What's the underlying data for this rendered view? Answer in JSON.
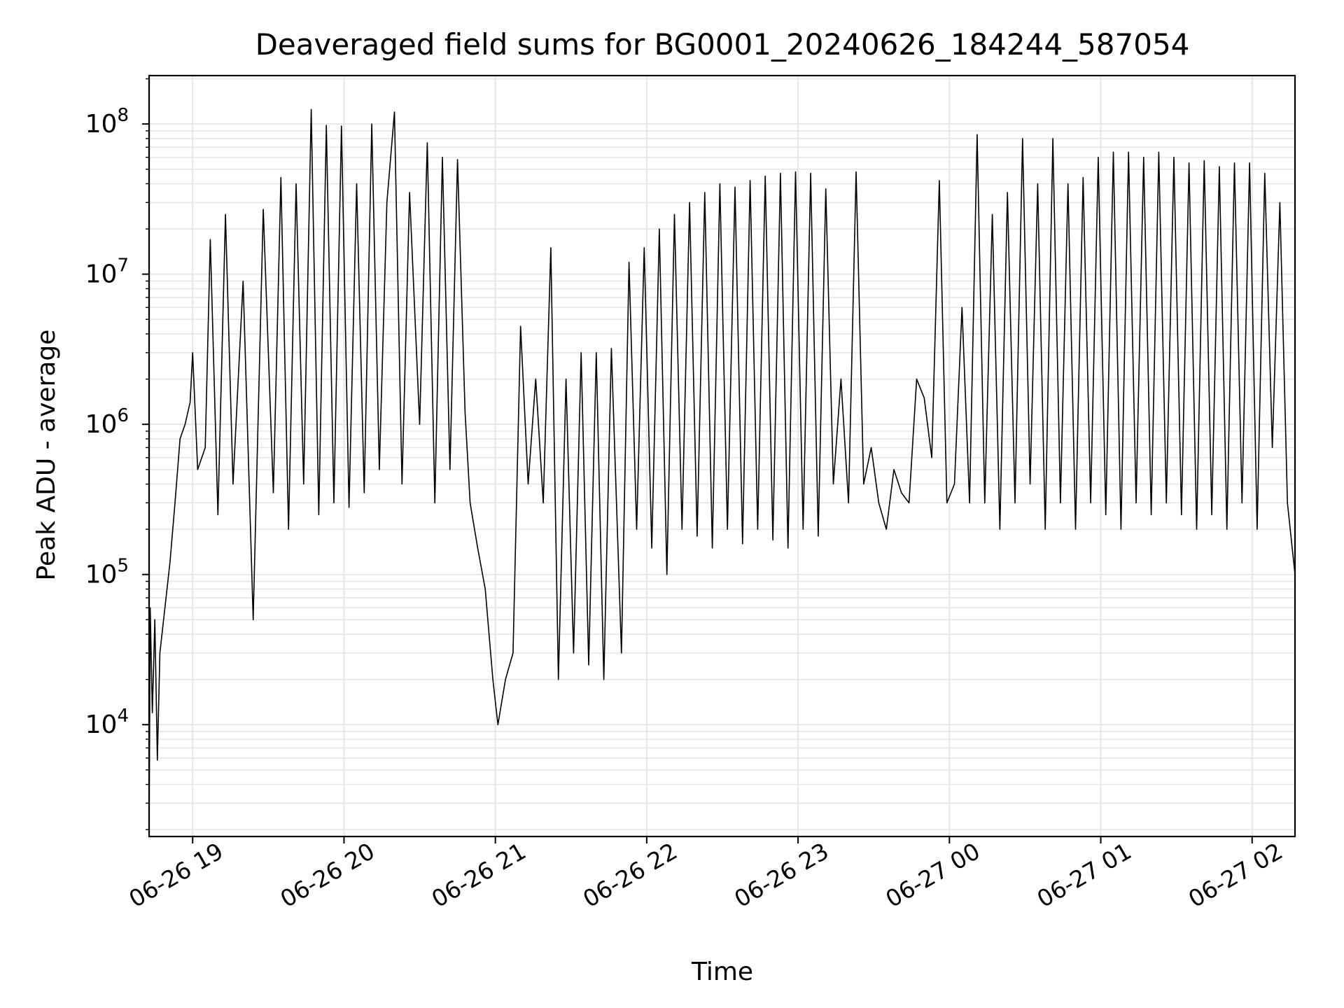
{
  "chart_data": {
    "type": "line",
    "title": "Deaveraged field sums for BG0001_20240626_184244_587054",
    "xlabel": "Time",
    "ylabel": "Peak ADU - average",
    "yscale": "log",
    "ylim": [
      1800,
      210000000
    ],
    "xlim": [
      "06-26 18:42:44",
      "06-27 02:17:00"
    ],
    "grid": true,
    "grid_minor": true,
    "line_color": "#000000",
    "grid_color": "#e6e6e6",
    "xticks": [
      {
        "label": "06-26 19",
        "time": "06-26 19:00"
      },
      {
        "label": "06-26 20",
        "time": "06-26 20:00"
      },
      {
        "label": "06-26 21",
        "time": "06-26 21:00"
      },
      {
        "label": "06-26 22",
        "time": "06-26 22:00"
      },
      {
        "label": "06-26 23",
        "time": "06-26 23:00"
      },
      {
        "label": "06-27 00",
        "time": "06-27 00:00"
      },
      {
        "label": "06-27 01",
        "time": "06-27 01:00"
      },
      {
        "label": "06-27 02",
        "time": "06-27 02:00"
      }
    ],
    "yticks": [
      {
        "base": "10",
        "exp": "4",
        "value": 10000
      },
      {
        "base": "10",
        "exp": "5",
        "value": 100000
      },
      {
        "base": "10",
        "exp": "6",
        "value": 1000000
      },
      {
        "base": "10",
        "exp": "7",
        "value": 10000000
      },
      {
        "base": "10",
        "exp": "8",
        "value": 100000000
      }
    ],
    "series": [
      {
        "points": [
          [
            "06-26 18:42:44",
            1800
          ],
          [
            "06-26 18:43:10",
            60000
          ],
          [
            "06-26 18:44:00",
            12000
          ],
          [
            "06-26 18:45:00",
            50000
          ],
          [
            "06-26 18:46:00",
            5800
          ],
          [
            "06-26 18:47:00",
            30000
          ],
          [
            "06-26 18:49:00",
            60000
          ],
          [
            "06-26 18:51:00",
            120000
          ],
          [
            "06-26 18:53:00",
            300000
          ],
          [
            "06-26 18:55:00",
            800000
          ],
          [
            "06-26 18:57:00",
            1000000
          ],
          [
            "06-26 18:59:00",
            1400000
          ],
          [
            "06-26 19:00:00",
            3000000
          ],
          [
            "06-26 19:02:00",
            500000
          ],
          [
            "06-26 19:05:00",
            700000
          ],
          [
            "06-26 19:07:00",
            17000000
          ],
          [
            "06-26 19:10:00",
            250000
          ],
          [
            "06-26 19:13:00",
            25000000
          ],
          [
            "06-26 19:16:00",
            400000
          ],
          [
            "06-26 19:20:00",
            9000000
          ],
          [
            "06-26 19:24:00",
            50000
          ],
          [
            "06-26 19:28:00",
            27000000
          ],
          [
            "06-26 19:32:00",
            350000
          ],
          [
            "06-26 19:35:00",
            44000000
          ],
          [
            "06-26 19:38:00",
            200000
          ],
          [
            "06-26 19:41:00",
            40000000
          ],
          [
            "06-26 19:44:00",
            400000
          ],
          [
            "06-26 19:47:00",
            125000000
          ],
          [
            "06-26 19:50:00",
            250000
          ],
          [
            "06-26 19:53:00",
            98000000
          ],
          [
            "06-26 19:56:00",
            300000
          ],
          [
            "06-26 19:59:00",
            97000000
          ],
          [
            "06-26 20:02:00",
            280000
          ],
          [
            "06-26 20:05:00",
            40000000
          ],
          [
            "06-26 20:08:00",
            350000
          ],
          [
            "06-26 20:11:00",
            100000000
          ],
          [
            "06-26 20:14:00",
            500000
          ],
          [
            "06-26 20:17:00",
            30000000
          ],
          [
            "06-26 20:20:00",
            120000000
          ],
          [
            "06-26 20:23:00",
            400000
          ],
          [
            "06-26 20:26:00",
            35000000
          ],
          [
            "06-26 20:30:00",
            1000000
          ],
          [
            "06-26 20:33:00",
            75000000
          ],
          [
            "06-26 20:36:00",
            300000
          ],
          [
            "06-26 20:39:00",
            60000000
          ],
          [
            "06-26 20:42:00",
            500000
          ],
          [
            "06-26 20:45:00",
            58000000
          ],
          [
            "06-26 20:48:00",
            1200000
          ],
          [
            "06-26 20:50:00",
            300000
          ],
          [
            "06-26 20:53:00",
            150000
          ],
          [
            "06-26 20:56:00",
            80000
          ],
          [
            "06-26 20:59:00",
            20000
          ],
          [
            "06-26 21:01:00",
            10000
          ],
          [
            "06-26 21:04:00",
            20000
          ],
          [
            "06-26 21:07:00",
            30000
          ],
          [
            "06-26 21:10:00",
            4500000
          ],
          [
            "06-26 21:13:00",
            400000
          ],
          [
            "06-26 21:16:00",
            2000000
          ],
          [
            "06-26 21:19:00",
            300000
          ],
          [
            "06-26 21:22:00",
            15000000
          ],
          [
            "06-26 21:25:00",
            20000
          ],
          [
            "06-26 21:28:00",
            2000000
          ],
          [
            "06-26 21:31:00",
            30000
          ],
          [
            "06-26 21:34:00",
            3000000
          ],
          [
            "06-26 21:37:00",
            25000
          ],
          [
            "06-26 21:40:00",
            3000000
          ],
          [
            "06-26 21:43:00",
            20000
          ],
          [
            "06-26 21:46:00",
            3200000
          ],
          [
            "06-26 21:50:00",
            30000
          ],
          [
            "06-26 21:53:00",
            12000000
          ],
          [
            "06-26 21:56:00",
            200000
          ],
          [
            "06-26 21:59:00",
            15000000
          ],
          [
            "06-26 22:02:00",
            150000
          ],
          [
            "06-26 22:05:00",
            20000000
          ],
          [
            "06-26 22:08:00",
            100000
          ],
          [
            "06-26 22:11:00",
            25000000
          ],
          [
            "06-26 22:14:00",
            200000
          ],
          [
            "06-26 22:17:00",
            30000000
          ],
          [
            "06-26 22:20:00",
            180000
          ],
          [
            "06-26 22:23:00",
            35000000
          ],
          [
            "06-26 22:26:00",
            150000
          ],
          [
            "06-26 22:29:00",
            40000000
          ],
          [
            "06-26 22:32:00",
            200000
          ],
          [
            "06-26 22:35:00",
            38000000
          ],
          [
            "06-26 22:38:00",
            160000
          ],
          [
            "06-26 22:41:00",
            42000000
          ],
          [
            "06-26 22:44:00",
            200000
          ],
          [
            "06-26 22:47:00",
            45000000
          ],
          [
            "06-26 22:50:00",
            170000
          ],
          [
            "06-26 22:53:00",
            47000000
          ],
          [
            "06-26 22:56:00",
            150000
          ],
          [
            "06-26 22:59:00",
            48000000
          ],
          [
            "06-26 23:02:00",
            200000
          ],
          [
            "06-26 23:05:00",
            47000000
          ],
          [
            "06-26 23:08:00",
            180000
          ],
          [
            "06-26 23:11:00",
            37000000
          ],
          [
            "06-26 23:14:00",
            400000
          ],
          [
            "06-26 23:17:00",
            2000000
          ],
          [
            "06-26 23:20:00",
            300000
          ],
          [
            "06-26 23:23:00",
            48000000
          ],
          [
            "06-26 23:26:00",
            400000
          ],
          [
            "06-26 23:29:00",
            700000
          ],
          [
            "06-26 23:32:00",
            300000
          ],
          [
            "06-26 23:35:00",
            200000
          ],
          [
            "06-26 23:38:00",
            500000
          ],
          [
            "06-26 23:41:00",
            350000
          ],
          [
            "06-26 23:44:00",
            300000
          ],
          [
            "06-26 23:47:00",
            2000000
          ],
          [
            "06-26 23:50:00",
            1500000
          ],
          [
            "06-26 23:53:00",
            600000
          ],
          [
            "06-26 23:56:00",
            42000000
          ],
          [
            "06-26 23:59:00",
            300000
          ],
          [
            "06-27 00:02:00",
            400000
          ],
          [
            "06-27 00:05:00",
            6000000
          ],
          [
            "06-27 00:08:00",
            300000
          ],
          [
            "06-27 00:11:00",
            85000000
          ],
          [
            "06-27 00:14:00",
            300000
          ],
          [
            "06-27 00:17:00",
            25000000
          ],
          [
            "06-27 00:20:00",
            200000
          ],
          [
            "06-27 00:23:00",
            35000000
          ],
          [
            "06-27 00:26:00",
            300000
          ],
          [
            "06-27 00:29:00",
            80000000
          ],
          [
            "06-27 00:32:00",
            400000
          ],
          [
            "06-27 00:35:00",
            40000000
          ],
          [
            "06-27 00:38:00",
            200000
          ],
          [
            "06-27 00:41:00",
            80000000
          ],
          [
            "06-27 00:44:00",
            300000
          ],
          [
            "06-27 00:47:00",
            40000000
          ],
          [
            "06-27 00:50:00",
            200000
          ],
          [
            "06-27 00:53:00",
            44000000
          ],
          [
            "06-27 00:56:00",
            300000
          ],
          [
            "06-27 00:59:00",
            60000000
          ],
          [
            "06-27 01:02:00",
            250000
          ],
          [
            "06-27 01:05:00",
            65000000
          ],
          [
            "06-27 01:08:00",
            200000
          ],
          [
            "06-27 01:11:00",
            65000000
          ],
          [
            "06-27 01:14:00",
            300000
          ],
          [
            "06-27 01:17:00",
            60000000
          ],
          [
            "06-27 01:20:00",
            250000
          ],
          [
            "06-27 01:23:00",
            65000000
          ],
          [
            "06-27 01:26:00",
            300000
          ],
          [
            "06-27 01:29:00",
            60000000
          ],
          [
            "06-27 01:32:00",
            250000
          ],
          [
            "06-27 01:35:00",
            55000000
          ],
          [
            "06-27 01:38:00",
            200000
          ],
          [
            "06-27 01:41:00",
            57000000
          ],
          [
            "06-27 01:44:00",
            250000
          ],
          [
            "06-27 01:47:00",
            52000000
          ],
          [
            "06-27 01:50:00",
            200000
          ],
          [
            "06-27 01:53:00",
            55000000
          ],
          [
            "06-27 01:56:00",
            300000
          ],
          [
            "06-27 01:59:00",
            55000000
          ],
          [
            "06-27 02:02:00",
            200000
          ],
          [
            "06-27 02:05:00",
            47000000
          ],
          [
            "06-27 02:08:00",
            700000
          ],
          [
            "06-27 02:11:00",
            30000000
          ],
          [
            "06-27 02:14:00",
            300000
          ],
          [
            "06-27 02:17:00",
            100000
          ]
        ]
      }
    ]
  }
}
